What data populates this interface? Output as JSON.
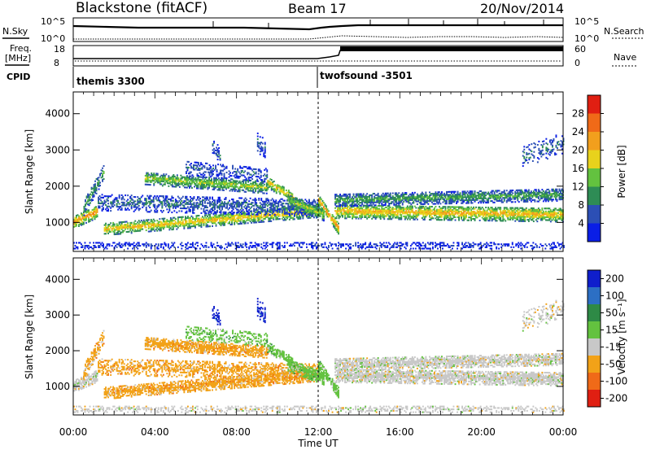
{
  "header": {
    "station": "Blackstone (fitACF)",
    "beam": "Beam 17",
    "date": "20/Nov/2014"
  },
  "status_panels": {
    "nsky_label": "N.Sky",
    "nsearch_label": "N.Search",
    "noise_ticks": [
      "10^5",
      "10^0"
    ],
    "freq_label_line1": "Freq.",
    "freq_label_line2": "[MHz]",
    "freq_ticks": [
      "18",
      "8"
    ],
    "nave_label": "Nave",
    "nave_ticks": [
      "60",
      "0"
    ],
    "cpid_label": "CPID",
    "cpid_segments": [
      {
        "name": "themis 3300",
        "start_hour": 0
      },
      {
        "name": "twofsound -3501",
        "start_hour": 12
      }
    ]
  },
  "chart_data": [
    {
      "type": "heatmap",
      "name": "power",
      "ylabel": "Slant Range [km]",
      "yticks": [
        1000,
        2000,
        3000,
        4000
      ],
      "ylim": [
        200,
        4600
      ],
      "xlim": [
        0,
        24
      ],
      "colorbar_label": "Power [dB]",
      "colorbar_ticks": [
        "4",
        "8",
        "12",
        "16",
        "20",
        "24",
        "28"
      ],
      "colorbar_colors": [
        "#0a1ee6",
        "#2c4fb5",
        "#2e8c55",
        "#63c23f",
        "#e8d21c",
        "#f29f1d",
        "#f06a18",
        "#e01f12"
      ]
    },
    {
      "type": "heatmap",
      "name": "velocity",
      "ylabel": "Slant Range [km]",
      "yticks": [
        1000,
        2000,
        3000,
        4000
      ],
      "ylim": [
        200,
        4600
      ],
      "xlim": [
        0,
        24
      ],
      "xlabel": "Time UT",
      "xticks": [
        "00:00",
        "04:00",
        "08:00",
        "12:00",
        "16:00",
        "20:00",
        "00:00"
      ],
      "colorbar_label": "Velocity [m s⁻¹]",
      "colorbar_ticks": [
        "200",
        "100",
        "50",
        "15",
        "-15",
        "-50",
        "-100",
        "-200"
      ],
      "colorbar_colors": [
        "#0f1ecc",
        "#2c6fc4",
        "#2e8a46",
        "#63c23f",
        "#c8c8c8",
        "#f2a218",
        "#f06a18",
        "#e01f12"
      ]
    }
  ]
}
